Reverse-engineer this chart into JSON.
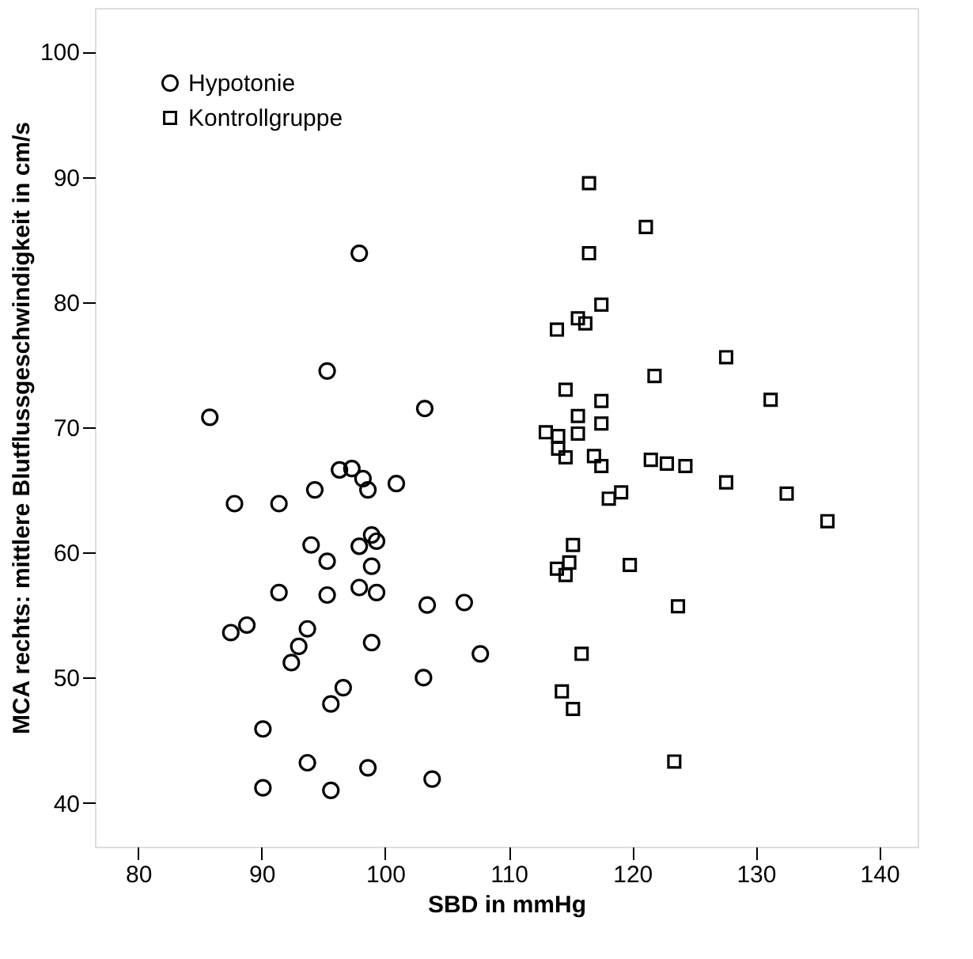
{
  "chart_data": {
    "type": "scatter",
    "xlabel": "SBD in mmHg",
    "ylabel": "MCA rechts: mittlere Blutflussgeschwindigkeit in cm/s",
    "xlim": [
      76.5,
      143.1
    ],
    "ylim": [
      36.5,
      103.5
    ],
    "xticks": [
      80,
      90,
      100,
      110,
      120,
      130,
      140
    ],
    "yticks": [
      40,
      50,
      60,
      70,
      80,
      90,
      100
    ],
    "grid": false,
    "legend": "top left",
    "series": [
      {
        "name": "Hypotonie",
        "color": "#000000",
        "marker": "circle",
        "x": [
          97.9,
          95.3,
          85.8,
          103.2,
          96.3,
          97.3,
          98.2,
          98.6,
          100.9,
          94.3,
          87.8,
          91.4,
          98.9,
          99.3,
          97.9,
          94.0,
          95.3,
          98.9,
          91.4,
          95.3,
          97.9,
          99.3,
          103.4,
          106.4,
          88.8,
          87.5,
          93.7,
          93.0,
          92.4,
          98.9,
          107.7,
          103.1,
          96.6,
          95.6,
          90.1,
          93.7,
          98.6,
          103.8,
          90.1,
          95.6
        ],
        "values": [
          83.9,
          74.5,
          70.8,
          71.5,
          66.6,
          66.7,
          65.9,
          65.0,
          65.5,
          65.0,
          63.9,
          63.9,
          61.4,
          60.9,
          60.5,
          60.6,
          59.3,
          58.9,
          56.8,
          56.6,
          57.2,
          56.8,
          55.8,
          56.0,
          54.2,
          53.6,
          53.9,
          52.5,
          51.2,
          52.8,
          51.9,
          50.0,
          49.2,
          47.9,
          45.9,
          43.2,
          42.8,
          41.9,
          41.2,
          41.0
        ]
      },
      {
        "name": "Kontrollgruppe",
        "color": "#000000",
        "marker": "square",
        "x": [
          116.5,
          121.1,
          116.5,
          117.5,
          115.6,
          116.2,
          113.9,
          127.6,
          121.8,
          114.6,
          117.5,
          131.2,
          115.6,
          117.5,
          113.0,
          114.0,
          115.6,
          114.0,
          114.6,
          116.9,
          117.5,
          121.5,
          122.8,
          124.3,
          127.6,
          132.5,
          119.1,
          118.1,
          135.8,
          115.2,
          114.9,
          113.9,
          114.6,
          119.8,
          123.7,
          115.9,
          114.3,
          115.2,
          123.4
        ],
        "values": [
          89.5,
          86.0,
          83.9,
          79.8,
          78.7,
          78.3,
          77.8,
          75.6,
          74.1,
          73.0,
          72.1,
          72.2,
          70.9,
          70.3,
          69.6,
          69.3,
          69.5,
          68.3,
          67.6,
          67.7,
          66.9,
          67.4,
          67.1,
          66.9,
          65.6,
          64.7,
          64.8,
          64.3,
          62.5,
          60.6,
          59.2,
          58.7,
          58.2,
          59.0,
          55.7,
          51.9,
          48.9,
          47.5,
          43.3
        ]
      }
    ]
  }
}
